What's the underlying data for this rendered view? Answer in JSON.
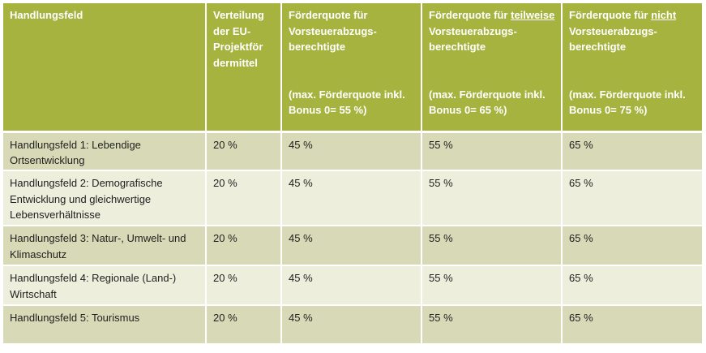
{
  "header": {
    "col1": "Handlungsfeld",
    "col2": "Verteilung der EU-Projektför dermittel",
    "col3_title": "Förderquote für Vorsteuerabzugs-berechtigte",
    "col3_note": "(max. Förderquote inkl. Bonus 0= 55 %)",
    "col4_pre": "Förderquote für",
    "col4_emph": "teilweise",
    "col4_post": "Vorsteuerabzugs-berechtigte",
    "col4_note": "(max. Förderquote inkl. Bonus 0= 65 %)",
    "col5_pre": "Förderquote für",
    "col5_emph": "nicht",
    "col5_post": "Vorsteuerabzugs-berechtigte",
    "col5_note": "(max. Förderquote inkl. Bonus 0= 75 %)"
  },
  "rows": [
    {
      "field": "Handlungsfeld 1: Lebendige Ortsentwicklung",
      "share": "20 %",
      "q1": "45 %",
      "q2": "55 %",
      "q3": "65 %"
    },
    {
      "field": "Handlungsfeld 2: Demografische Entwicklung und gleichwertige Lebensverhältnisse",
      "share": "20 %",
      "q1": "45 %",
      "q2": "55 %",
      "q3": "65 %"
    },
    {
      "field": "Handlungsfeld 3: Natur-, Umwelt- und Klimaschutz",
      "share": "20 %",
      "q1": "45 %",
      "q2": "55 %",
      "q3": "65 %"
    },
    {
      "field": "Handlungsfeld 4: Regionale (Land-) Wirtschaft",
      "share": "20 %",
      "q1": "45 %",
      "q2": "55 %",
      "q3": "65 %"
    },
    {
      "field": "Handlungsfeld 5: Tourismus",
      "share": "20 %",
      "q1": "45 %",
      "q2": "55 %",
      "q3": "65 %"
    }
  ],
  "colors": {
    "header_bg": "#a6b33f",
    "row_dark": "#d8dab7",
    "row_light": "#edeedc"
  }
}
